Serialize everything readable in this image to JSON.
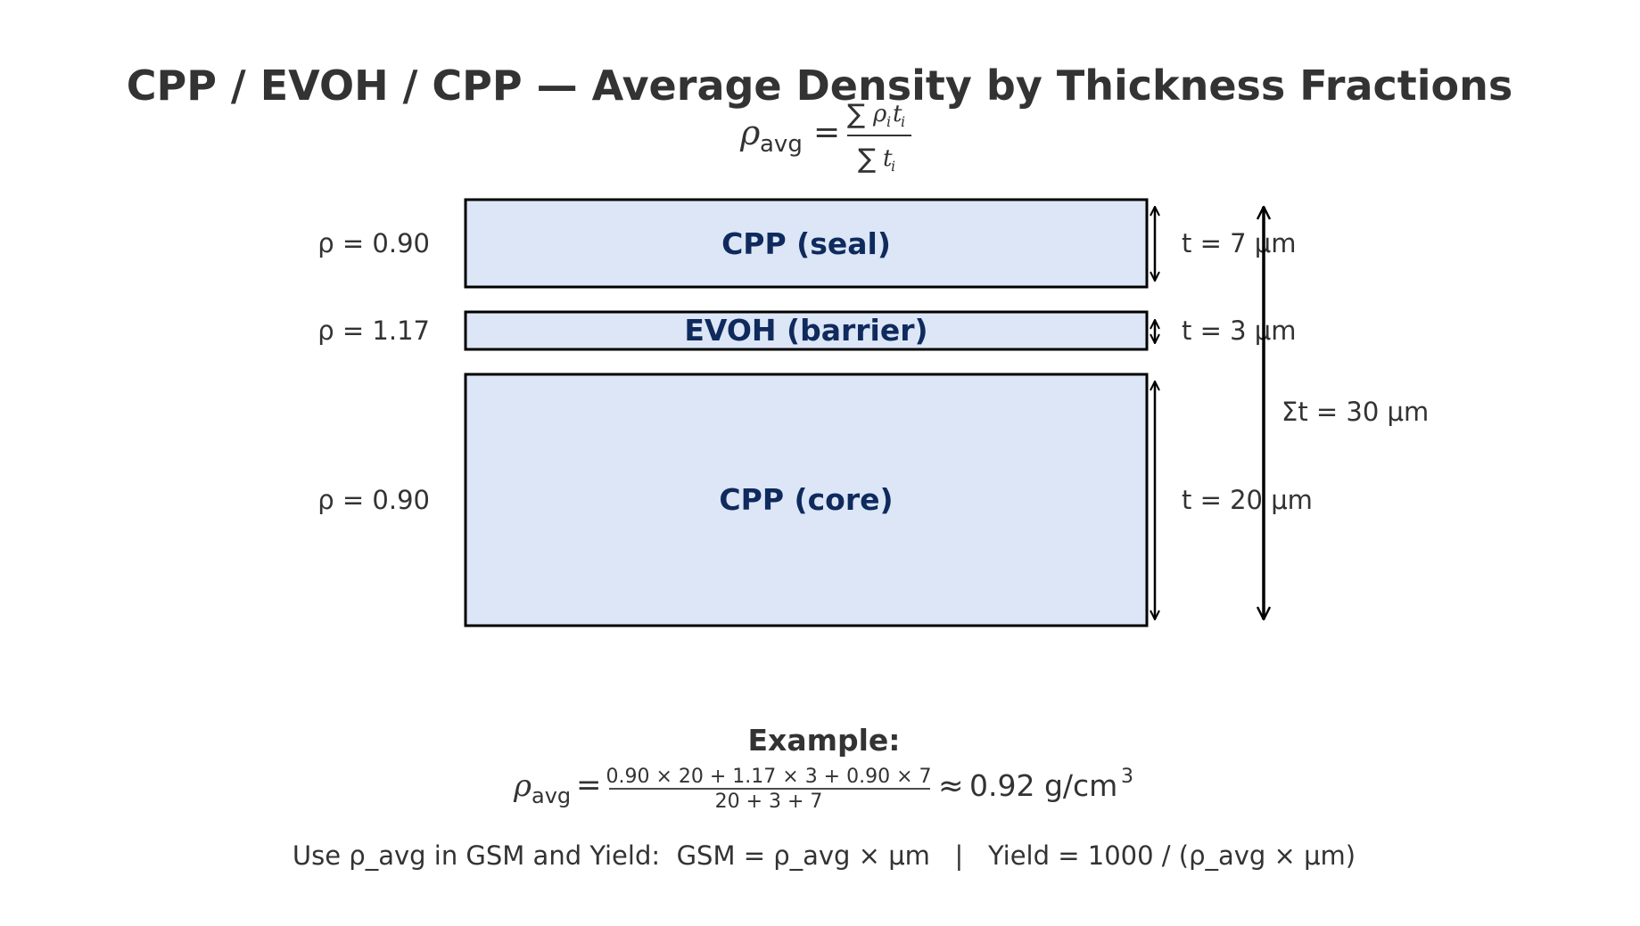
{
  "title": "CPP / EVOH / CPP — Average Density by Thickness Fractions",
  "formula": {
    "lhs_symbol": "ρ",
    "lhs_subscript": "avg",
    "equals": "=",
    "num_sum": "∑",
    "num_rho": "ρ",
    "num_rho_sub": "i",
    "num_t": "t",
    "num_t_sub": "i",
    "den_sum": "∑",
    "den_t": "t",
    "den_t_sub": "i"
  },
  "layers": [
    {
      "name": "CPP (seal)",
      "density_label": "ρ = 0.90",
      "thickness_label": "t = 7 μm",
      "density": 0.9,
      "thickness_um": 7
    },
    {
      "name": "EVOH (barrier)",
      "density_label": "ρ = 1.17",
      "thickness_label": "t = 3 μm",
      "density": 1.17,
      "thickness_um": 3
    },
    {
      "name": "CPP (core)",
      "density_label": "ρ = 0.90",
      "thickness_label": "t = 20 μm",
      "density": 0.9,
      "thickness_um": 20
    }
  ],
  "total_label": "Σt = 30 μm",
  "example": {
    "heading": "Example:",
    "lhs_symbol": "ρ",
    "lhs_subscript": "avg",
    "equals": "=",
    "numerator": "0.90 × 20 + 1.17 × 3 + 0.90 × 7",
    "denominator": "20 + 3 + 7",
    "approx": "≈",
    "result": "0.92 g/cm",
    "result_superscript": "3"
  },
  "footer": "Use ρ_avg in GSM and Yield:  GSM = ρ_avg × μm   |   Yield = 1000 / (ρ_avg × μm)",
  "colors": {
    "layer_fill": "#dce6f7",
    "layer_text": "#0f2a5c",
    "text": "#333333",
    "stroke": "#000000"
  }
}
